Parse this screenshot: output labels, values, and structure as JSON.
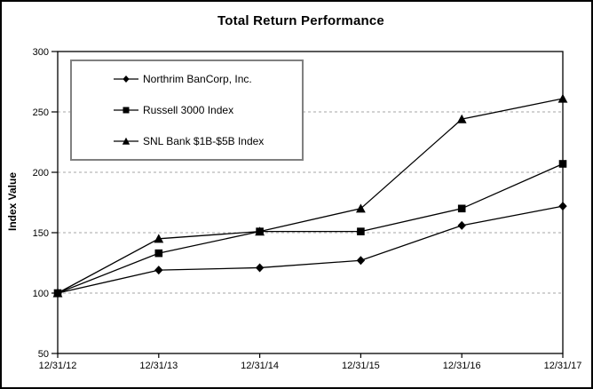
{
  "chart_data": {
    "type": "line",
    "title": "Total Return Performance",
    "ylabel": "Index Value",
    "xlabel": "",
    "categories": [
      "12/31/12",
      "12/31/13",
      "12/31/14",
      "12/31/15",
      "12/31/16",
      "12/31/17"
    ],
    "series": [
      {
        "name": "Northrim BanCorp, Inc.",
        "marker": "diamond",
        "values": [
          100,
          119,
          121,
          127,
          156,
          172
        ]
      },
      {
        "name": "Russell 3000 Index",
        "marker": "square",
        "values": [
          100,
          133,
          151,
          151,
          170,
          207
        ]
      },
      {
        "name": "SNL Bank $1B-$5B Index",
        "marker": "triangle",
        "values": [
          100,
          145,
          151,
          170,
          244,
          261
        ]
      }
    ],
    "ylim": [
      50,
      300
    ],
    "ytick_step": 50,
    "grid": "horizontal-dashed",
    "legend_position": "upper-left-inside",
    "colors": {
      "line": "#000000",
      "text": "#000000",
      "grid": "#a6a6a6",
      "legend_border": "#808080",
      "background": "#ffffff"
    }
  }
}
